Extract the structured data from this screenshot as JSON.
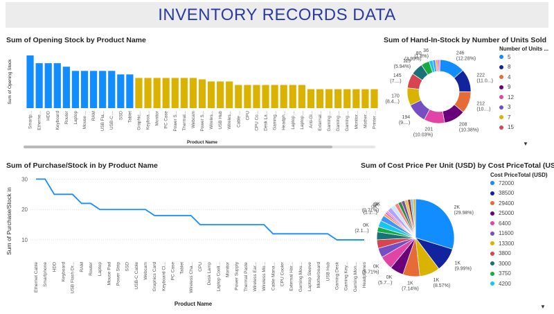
{
  "header": {
    "title": "INVENTORY RECORDS DATA"
  },
  "colors": {
    "header_bg": "#ececec",
    "title_color": "#2b3a9e",
    "bar_blue": "#118dff",
    "bar_gold": "#d9b300"
  },
  "chart1": {
    "title": "Sum of Opening Stock by Product Name",
    "chart_data": {
      "type": "bar",
      "xlabel": "Product Name",
      "ylabel": "Sum of Opening Stock",
      "categories": [
        "Smartp...",
        "Etherne...",
        "HDD",
        "Keyboard",
        "Router",
        "Laptop",
        "Mouse ...",
        "RAM",
        "USB Fla...",
        "USB-C ...",
        "SSD",
        "Tablet",
        "Graphic...",
        "Keyboa...",
        "Monitor",
        "PC Case",
        "Power S...",
        "Thermal...",
        "Webcam",
        "Power S...",
        "Wireles...",
        "USB Hub",
        "Wireles...",
        "Cable ...",
        "CPU",
        "CPU Co...",
        "Desk La...",
        "Gaming...",
        "Headph...",
        "Laptop ...",
        "Laptop ...",
        "Anti-Gl...",
        "External...",
        "Gaming ...",
        "Gaming ...",
        "Gaming ...",
        "Monitor...",
        "Mother...",
        "Printer ..."
      ],
      "values": [
        75,
        64,
        64,
        64,
        59,
        53,
        53,
        53,
        53,
        53,
        48,
        48,
        43,
        43,
        43,
        43,
        43,
        43,
        43,
        41,
        38,
        38,
        38,
        33,
        33,
        33,
        33,
        33,
        33,
        33,
        33,
        27,
        27,
        27,
        27,
        27,
        27,
        27,
        27
      ],
      "colors_by_group": {
        "blue_count": 12
      }
    }
  },
  "chart2": {
    "title": "Sum of Hand-In-Stock by Number of Units Sold",
    "legend_title": "Number of Units ...",
    "legend_items": [
      {
        "label": "5",
        "color": "#118dff"
      },
      {
        "label": "8",
        "color": "#12239e"
      },
      {
        "label": "4",
        "color": "#e66c37"
      },
      {
        "label": "9",
        "color": "#6b007b"
      },
      {
        "label": "12",
        "color": "#e044a7"
      },
      {
        "label": "3",
        "color": "#744ec2"
      },
      {
        "label": "7",
        "color": "#d9b300"
      },
      {
        "label": "15",
        "color": "#d64550"
      }
    ],
    "chart_data": {
      "type": "pie",
      "donut": true,
      "slices": [
        {
          "label": "246 (12.28%)",
          "value": 246,
          "color": "#118dff"
        },
        {
          "label": "222 (11.0...)",
          "value": 222,
          "color": "#12239e"
        },
        {
          "label": "212 (10....)",
          "value": 212,
          "color": "#e66c37"
        },
        {
          "label": "208 (10.38%)",
          "value": 208,
          "color": "#6b007b"
        },
        {
          "label": "201 (10.03%)",
          "value": 201,
          "color": "#e044a7"
        },
        {
          "label": "194 (9....)",
          "value": 194,
          "color": "#744ec2"
        },
        {
          "label": "170 (8.4...)",
          "value": 170,
          "color": "#d9b300"
        },
        {
          "label": "145 (7....)",
          "value": 145,
          "color": "#d64550"
        },
        {
          "label": "119 (5.94%)",
          "value": 119,
          "color": "#197278"
        },
        {
          "label": "80 (3.99%)",
          "value": 80,
          "color": "#1aab40"
        },
        {
          "label": "36 (1.8%)",
          "value": 36,
          "color": "#15c6f4"
        },
        {
          "label": "",
          "value": 25,
          "color": "#4092ff"
        },
        {
          "label": "",
          "value": 20,
          "color": "#ffa058"
        },
        {
          "label": "",
          "value": 15,
          "color": "#be5dc9"
        },
        {
          "label": "",
          "value": 12,
          "color": "#f472d0"
        }
      ]
    }
  },
  "chart3": {
    "title": "Sum of Purchase/Stock in by Product Name",
    "chart_data": {
      "type": "line",
      "xlabel": "Product Name",
      "ylabel": "Sum of Purchase/Stock in",
      "yticks": [
        10,
        20,
        30
      ],
      "ylim": [
        5,
        31
      ],
      "categories": [
        "Ethernet Cable",
        "Smartphone",
        "HDD",
        "Keyboard",
        "USB Flash Dr...",
        "RAM",
        "Router",
        "Laptop",
        "Mouse Pad",
        "Power Strip",
        "SSD",
        "USB-C Cable",
        "Webcam",
        "Graphics Card",
        "Keyboard Cl...",
        "PC Case",
        "Tablet",
        "Wireless Cha...",
        "CPU",
        "Desk Lamp",
        "Laptop Cooli...",
        "Monitor",
        "Power Supply",
        "Thermal Paste",
        "Wireless Ear...",
        "Wireless Mo...",
        "Cable Mana...",
        "CPU Cooler",
        "External Har...",
        "Gaming Mou...",
        "Laptop Sleeve",
        "Motherboard",
        "USB Hub",
        "Gaming Desk",
        "Gaming Key...",
        "Gaming Mon...",
        "Headphones"
      ],
      "values": [
        30,
        30,
        25,
        25,
        25,
        22,
        22,
        20,
        20,
        20,
        20,
        20,
        20,
        18,
        18,
        18,
        18,
        18,
        15,
        15,
        15,
        15,
        15,
        15,
        15,
        15,
        12,
        12,
        12,
        12,
        12,
        12,
        12,
        10,
        10,
        10,
        10
      ],
      "color": "#118dff"
    }
  },
  "chart4": {
    "title": "Sum of Cost Price Per Unit (USD) by Cost PriceTotal (USD)",
    "legend_title": "Cost PriceTotal (USD)",
    "legend_items": [
      {
        "label": "72000",
        "color": "#118dff"
      },
      {
        "label": "38500",
        "color": "#12239e"
      },
      {
        "label": "29400",
        "color": "#e66c37"
      },
      {
        "label": "25000",
        "color": "#6b007b"
      },
      {
        "label": "6400",
        "color": "#e044a7"
      },
      {
        "label": "11600",
        "color": "#744ec2"
      },
      {
        "label": "13300",
        "color": "#d9b300"
      },
      {
        "label": "3800",
        "color": "#d64550"
      },
      {
        "label": "3000",
        "color": "#197278"
      },
      {
        "label": "3750",
        "color": "#1aab40"
      },
      {
        "label": "4200",
        "color": "#15c6f4"
      }
    ],
    "chart_data": {
      "type": "pie",
      "slices": [
        {
          "label": "2K (29.98%)",
          "value": 29.98,
          "color": "#118dff"
        },
        {
          "label": "1K (9.99%)",
          "value": 9.99,
          "color": "#12239e"
        },
        {
          "label": "1K (8.57%)",
          "value": 8.57,
          "color": "#d9b300"
        },
        {
          "label": "1K (7.14%)",
          "value": 7.14,
          "color": "#e66c37"
        },
        {
          "label": "0K (5.7...)",
          "value": 5.7,
          "color": "#6b007b"
        },
        {
          "label": "0K (5.71%)",
          "value": 5.71,
          "color": "#e044a7"
        },
        {
          "label": "",
          "value": 4.0,
          "color": "#744ec2"
        },
        {
          "label": "",
          "value": 3.6,
          "color": "#d64550"
        },
        {
          "label": "",
          "value": 3.3,
          "color": "#197278"
        },
        {
          "label": "0K (2.1...)",
          "value": 2.1,
          "color": "#1aab40"
        },
        {
          "label": "",
          "value": 2.8,
          "color": "#15c6f4"
        },
        {
          "label": "",
          "value": 2.4,
          "color": "#4092ff"
        },
        {
          "label": "0K (1.1...)",
          "value": 1.1,
          "color": "#ffa058"
        },
        {
          "label": "0K (0.71%)",
          "value": 0.71,
          "color": "#be5dc9"
        },
        {
          "label": "0K",
          "value": 0.7,
          "color": "#f472d0"
        },
        {
          "label": "",
          "value": 2.0,
          "color": "#b5a1ff"
        },
        {
          "label": "",
          "value": 1.8,
          "color": "#c4ecff"
        },
        {
          "label": "",
          "value": 1.6,
          "color": "#ff8080"
        },
        {
          "label": "",
          "value": 1.5,
          "color": "#2c8f44"
        },
        {
          "label": "",
          "value": 1.4,
          "color": "#7e4fa0"
        },
        {
          "label": "",
          "value": 1.3,
          "color": "#e8c547"
        },
        {
          "label": "",
          "value": 1.2,
          "color": "#a1343c"
        },
        {
          "label": "",
          "value": 1.1,
          "color": "#6ad1e5"
        },
        {
          "label": "",
          "value": 1.0,
          "color": "#f5a623"
        }
      ]
    }
  }
}
